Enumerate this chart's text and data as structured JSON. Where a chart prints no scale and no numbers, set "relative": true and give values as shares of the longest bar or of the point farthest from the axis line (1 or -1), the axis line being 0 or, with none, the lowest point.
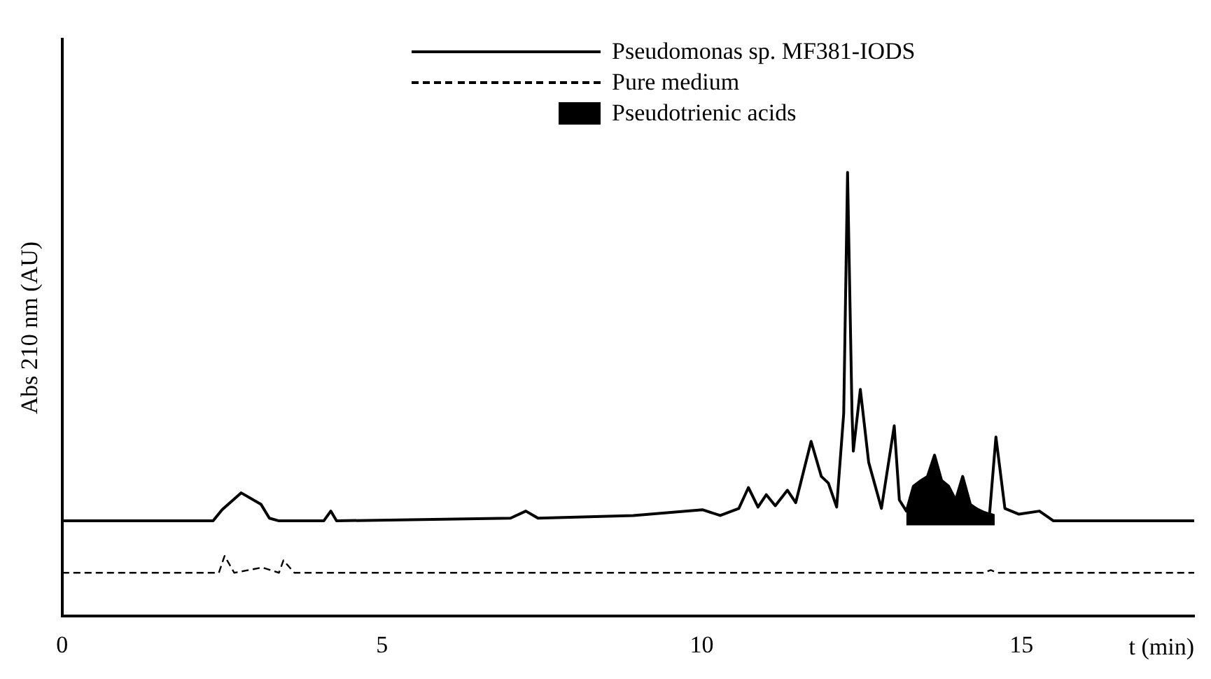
{
  "chart_data": {
    "type": "line",
    "xlabel": "t (min)",
    "ylabel": "Abs 210 nm (AU)",
    "relative": true,
    "xlim": [
      0,
      17.7
    ],
    "xticks": [
      0,
      5,
      10,
      15
    ],
    "grid": false,
    "legend": "top right",
    "series": [
      {
        "name": "Pseudomonas sp. MF381-IODS",
        "color": "#000000",
        "line_style": "solid",
        "x": [
          0,
          2.36,
          2.5,
          2.8,
          3.11,
          3.24,
          3.39,
          4.09,
          4.2,
          4.29,
          7.01,
          7.25,
          7.44,
          8.93,
          10.01,
          10.29,
          10.58,
          10.73,
          10.88,
          11.01,
          11.15,
          11.34,
          11.47,
          11.71,
          11.87,
          11.98,
          12.11,
          12.22,
          12.28,
          12.35,
          12.37,
          12.48,
          12.61,
          12.81,
          13.01,
          13.09,
          13.2,
          13.31,
          13.43,
          13.53,
          13.64,
          13.75,
          13.86,
          13.97,
          14.08,
          14.2,
          14.42,
          14.5,
          14.6,
          14.74,
          14.96,
          15.28,
          15.5,
          17.7
        ],
        "values": [
          0.215,
          0.215,
          0.24,
          0.278,
          0.252,
          0.221,
          0.215,
          0.215,
          0.237,
          0.215,
          0.221,
          0.237,
          0.221,
          0.227,
          0.24,
          0.227,
          0.243,
          0.29,
          0.246,
          0.274,
          0.249,
          0.284,
          0.256,
          0.394,
          0.315,
          0.3,
          0.246,
          0.457,
          1,
          0.457,
          0.372,
          0.511,
          0.347,
          0.243,
          0.429,
          0.262,
          0.237,
          0.293,
          0.306,
          0.315,
          0.363,
          0.306,
          0.293,
          0.262,
          0.315,
          0.252,
          0.23,
          0.23,
          0.404,
          0.243,
          0.23,
          0.237,
          0.215,
          0.215
        ]
      },
      {
        "name": "Pure medium",
        "color": "#000000",
        "line_style": "dashed",
        "x": [
          0,
          2.45,
          2.54,
          2.69,
          3.13,
          3.39,
          3.46,
          3.63,
          14.4,
          14.52,
          14.62,
          17.7
        ],
        "values": [
          0.098,
          0.098,
          0.136,
          0.098,
          0.11,
          0.098,
          0.126,
          0.098,
          0.098,
          0.104,
          0.098,
          0.098
        ]
      },
      {
        "name": "Pseudotrienic acids",
        "type": "area",
        "color": "#000000",
        "x": [
          13.2,
          13.2,
          13.31,
          13.43,
          13.53,
          13.64,
          13.75,
          13.86,
          13.97,
          14.08,
          14.2,
          14.42,
          14.58,
          14.58
        ],
        "values": [
          0.205,
          0.237,
          0.293,
          0.306,
          0.315,
          0.363,
          0.306,
          0.293,
          0.262,
          0.315,
          0.252,
          0.237,
          0.23,
          0.205
        ]
      }
    ]
  }
}
